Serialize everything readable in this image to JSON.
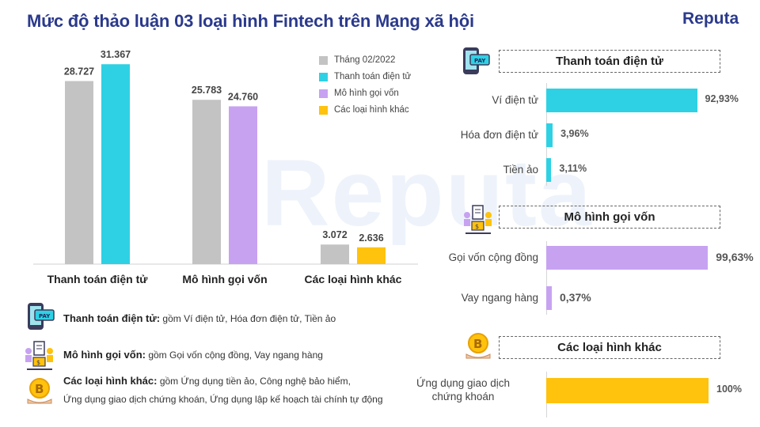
{
  "title": "Mức độ thảo luận 03 loại hình Fintech trên Mạng xã hội",
  "logo": "Reputa",
  "watermark": "Reputa",
  "colors": {
    "gray": "#c3c3c3",
    "cyan": "#2ed1e4",
    "purple": "#c7a2f1",
    "yellow": "#ffc20d",
    "title": "#2b3a8c"
  },
  "chart_data": [
    {
      "type": "bar",
      "categories": [
        "Thanh toán điện tử",
        "Mô hình gọi vốn",
        "Các loại hình khác"
      ],
      "series": [
        {
          "name": "Tháng 02/2022",
          "values": [
            28727,
            25783,
            3072
          ],
          "labels": [
            "28.727",
            "25.783",
            "3.072"
          ]
        },
        {
          "name": "",
          "values": [
            31367,
            24760,
            2636
          ],
          "labels": [
            "31.367",
            "24.760",
            "2.636"
          ]
        }
      ],
      "legend": [
        "Tháng 02/2022",
        "Thanh toán điện tử",
        "Mô hình gọi vốn",
        "Các loại hình khác"
      ],
      "legend_placement": "top-right",
      "ylim": [
        0,
        34000
      ],
      "grid": false
    },
    {
      "type": "bar",
      "orientation": "horizontal",
      "title": "Thanh toán điện tử",
      "categories": [
        "Ví điện tử",
        "Hóa đơn điện tử",
        "Tiền ảo"
      ],
      "values": [
        92.93,
        3.96,
        3.11
      ],
      "labels": [
        "92,93%",
        "3,96%",
        "3,11%"
      ],
      "xlim": [
        0,
        100
      ]
    },
    {
      "type": "bar",
      "orientation": "horizontal",
      "title": "Mô hình gọi vốn",
      "categories": [
        "Gọi vốn cộng đồng",
        "Vay ngang hàng"
      ],
      "values": [
        99.63,
        0.37
      ],
      "labels": [
        "99,63%",
        "0,37%"
      ],
      "xlim": [
        0,
        100
      ]
    },
    {
      "type": "bar",
      "orientation": "horizontal",
      "title": "Các loại hình khác",
      "categories": [
        "Ứng dụng giao dịch chứng khoán"
      ],
      "category_lines": [
        [
          "Ứng dụng giao dịch",
          "chứng khoán"
        ]
      ],
      "values": [
        100
      ],
      "labels": [
        "100%"
      ],
      "xlim": [
        0,
        100
      ]
    }
  ],
  "notes": [
    {
      "icon": "pay-phone-icon",
      "head": "Thanh toán điện tử:",
      "text": "gồm Ví điện tử, Hóa đơn điện tử, Tiền ảo",
      "text2": ""
    },
    {
      "icon": "crowdfunding-icon",
      "head": "Mô hình gọi vốn:",
      "text": "gồm Gọi vốn cộng đồng, Vay ngang hàng",
      "text2": ""
    },
    {
      "icon": "bitcoin-hand-icon",
      "head": "Các loại hình khác:",
      "text": "gồm Ứng dụng tiền ảo, Công nghệ bảo hiểm,",
      "text2": "Ứng dụng giao dịch chứng khoán, Ứng dụng lập kế hoạch tài chính tự động"
    }
  ]
}
